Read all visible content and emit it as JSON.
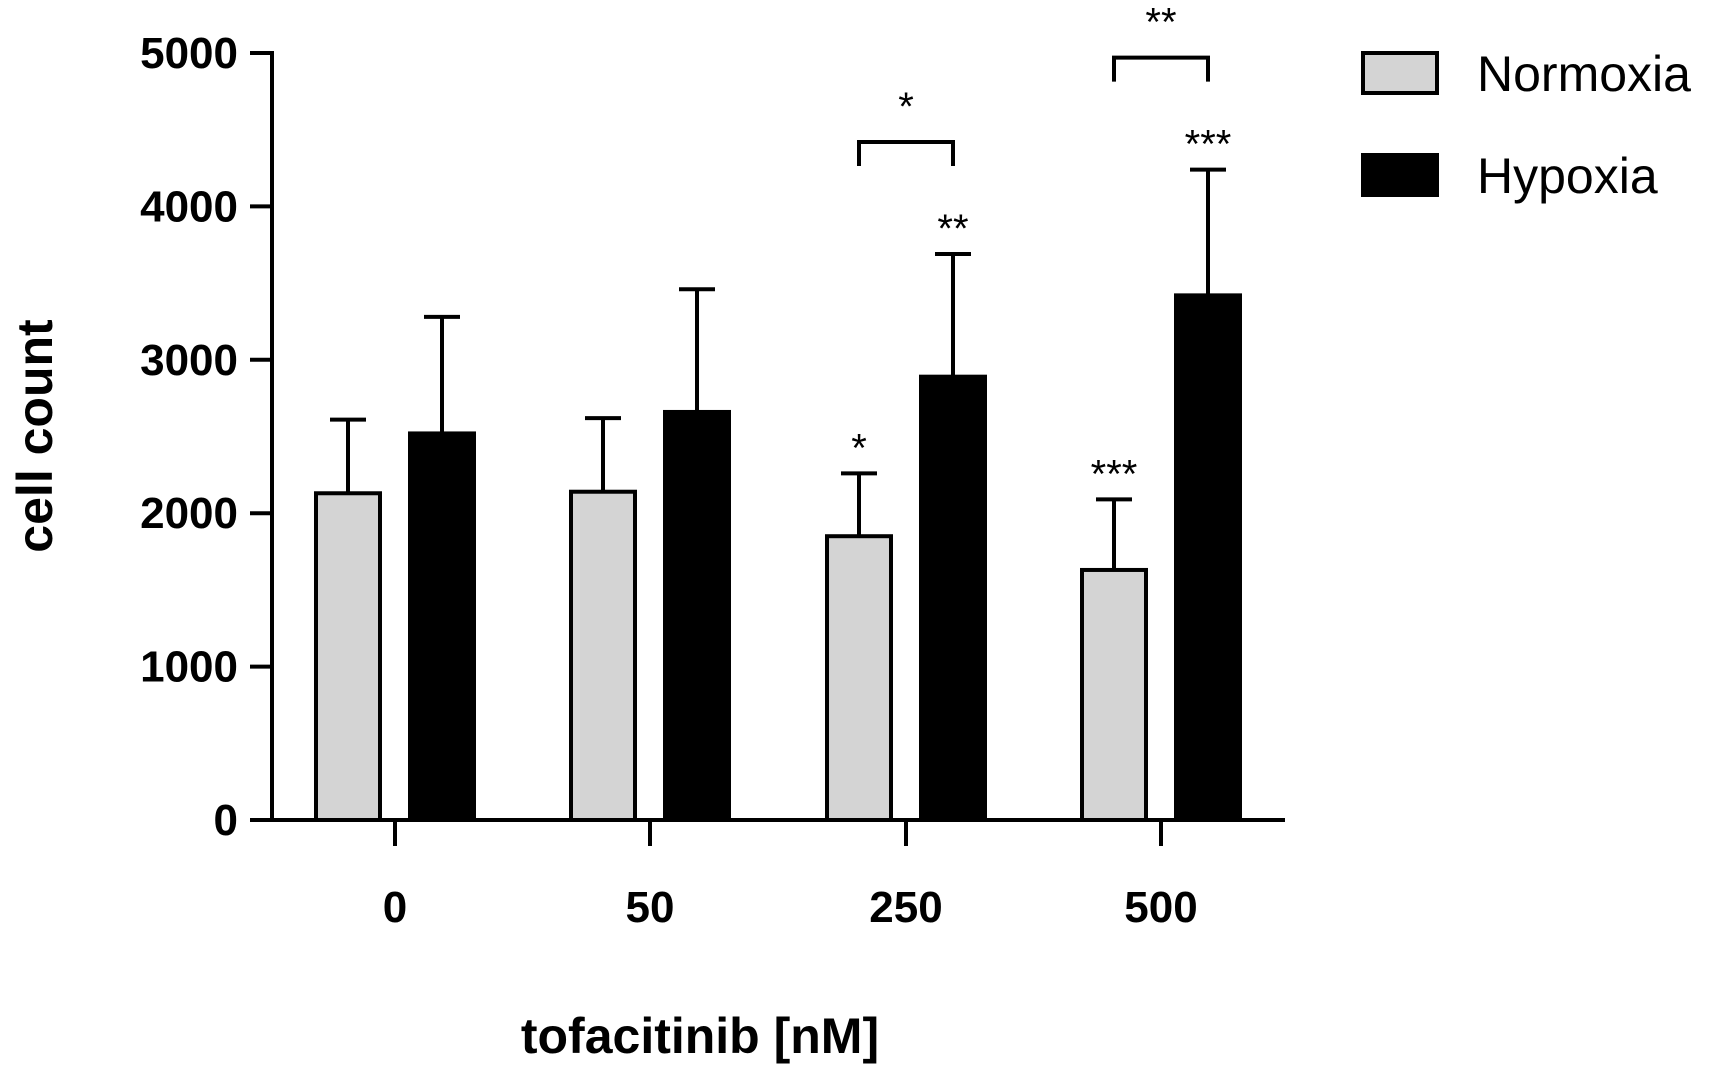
{
  "chart_data": {
    "type": "bar",
    "title": "",
    "xlabel": "tofacitinib [nM]",
    "ylabel": "cell count",
    "ylim": [
      0,
      5000
    ],
    "yticks": [
      0,
      1000,
      2000,
      3000,
      4000,
      5000
    ],
    "ytick_labels": [
      "0",
      "1000",
      "2000",
      "3000",
      "4000",
      "5000"
    ],
    "categories": [
      "0",
      "50",
      "250",
      "500"
    ],
    "legend_position": "top-right",
    "series": [
      {
        "name": "Normoxia",
        "color": "#d4d4d4",
        "values": [
          2130,
          2140,
          1850,
          1630
        ],
        "errors": [
          480,
          480,
          410,
          460
        ],
        "significance": [
          "",
          "",
          "*",
          "***"
        ]
      },
      {
        "name": "Hypoxia",
        "color": "#000000",
        "values": [
          2520,
          2660,
          2890,
          3420
        ],
        "errors": [
          760,
          800,
          800,
          820
        ],
        "significance": [
          "",
          "",
          "**",
          "***"
        ]
      }
    ],
    "comparisons": [
      {
        "category": "250",
        "label": "*"
      },
      {
        "category": "500",
        "label": "**"
      }
    ]
  }
}
